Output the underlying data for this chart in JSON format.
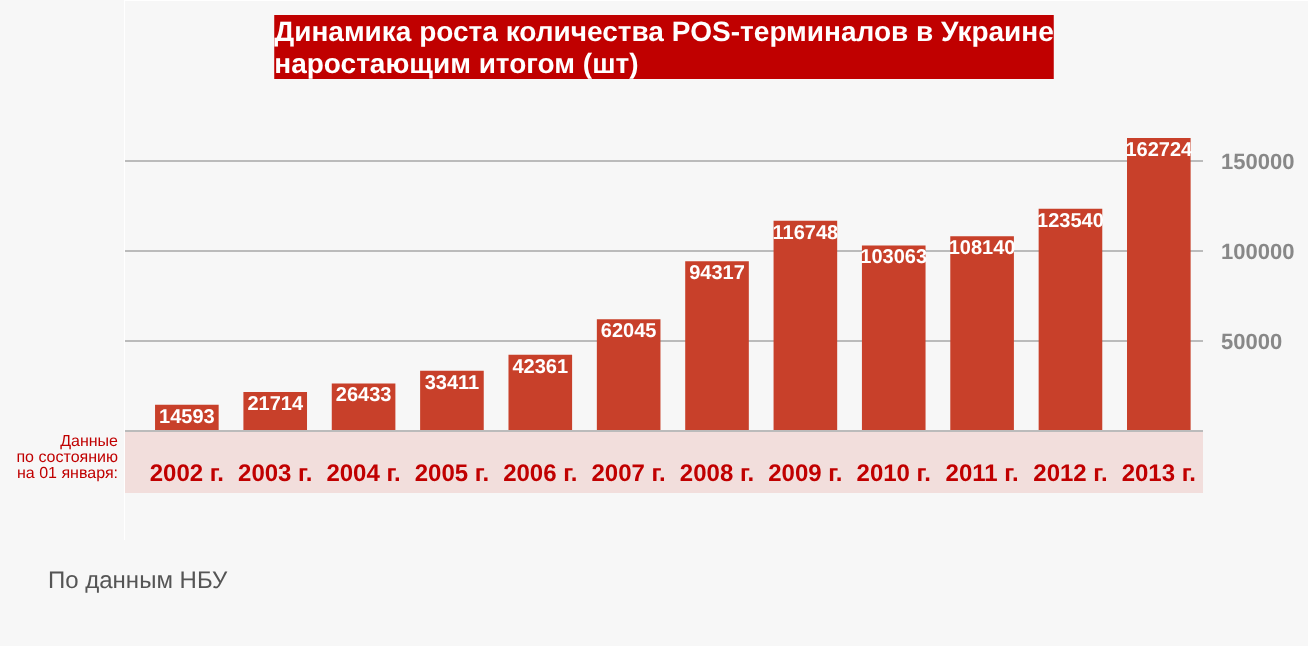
{
  "chart_data": {
    "type": "bar",
    "title": "Динамика роста количества POS-терминалов в Украине\nнаростающим итогом (шт)",
    "xlabel": "Данные\nпо состоянию\nна 01 января:",
    "categories": [
      "2002 г.",
      "2003 г.",
      "2004 г.",
      "2005 г.",
      "2006 г.",
      "2007 г.",
      "2008 г.",
      "2009 г.",
      "2010 г.",
      "2011 г.",
      "2012 г.",
      "2013 г."
    ],
    "values": [
      14593,
      21714,
      26433,
      33411,
      42361,
      62045,
      94317,
      116748,
      103063,
      108140,
      123540,
      162724
    ],
    "color": "#c8402a",
    "ylim": [
      0,
      190000
    ],
    "yticks": [
      50000,
      100000,
      150000
    ],
    "grid": "y",
    "data_labels": true,
    "annotations": [
      "По данным НБУ"
    ]
  }
}
